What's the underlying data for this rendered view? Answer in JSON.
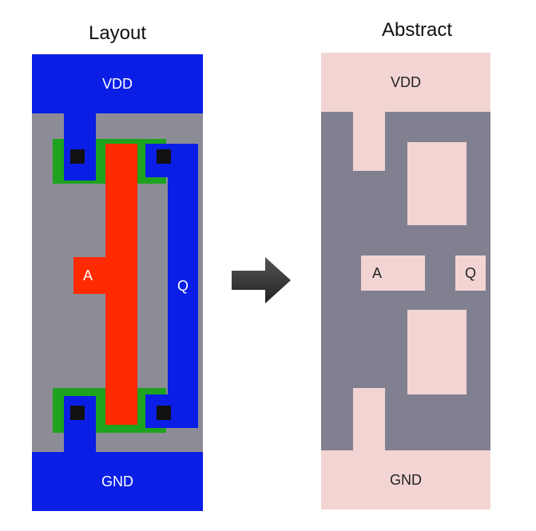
{
  "titles": {
    "layout": "Layout",
    "abstract": "Abstract"
  },
  "layout": {
    "vdd": "VDD",
    "gnd": "GND",
    "input": "A",
    "output": "Q"
  },
  "abstract": {
    "vdd": "VDD",
    "gnd": "GND",
    "input": "A",
    "output": "Q"
  },
  "colors": {
    "metal": "#0a1ee6",
    "poly": "#ff2a00",
    "diffusion": "#1ea31e",
    "substrate": "#8c8c96",
    "abstract_bg": "#808090",
    "abstract_pin": "#f2d5d3",
    "contact": "#111111",
    "arrow": "#333333"
  },
  "arrow_icon": "right-arrow-icon"
}
